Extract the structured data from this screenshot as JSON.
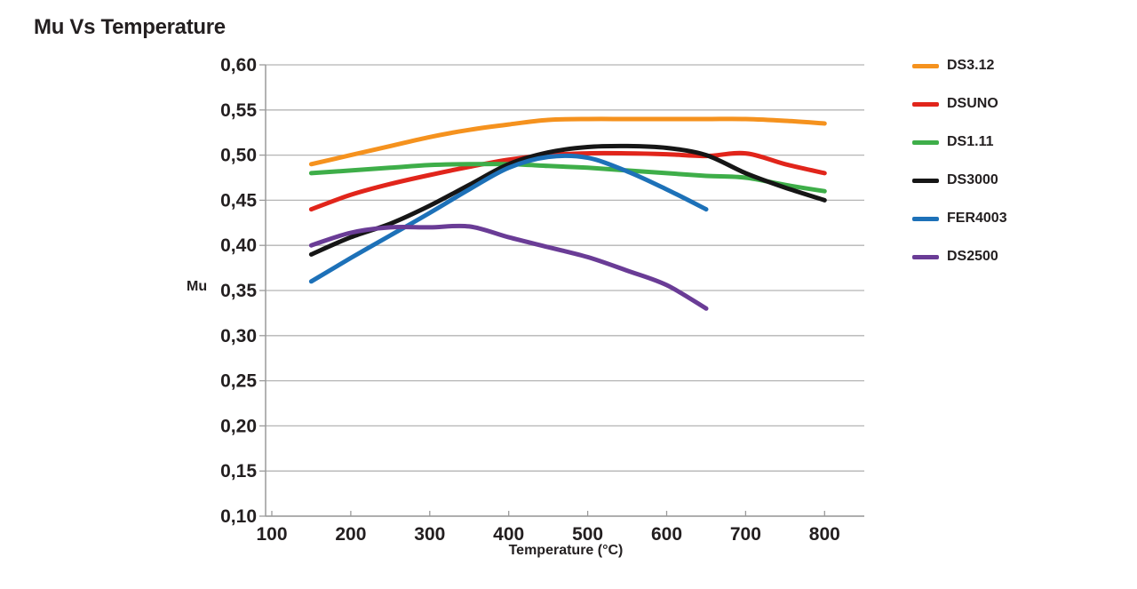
{
  "title": "Mu Vs Temperature",
  "colors": {
    "text": "#231F20",
    "grid": "#B5B5B5",
    "axis": "#9A9A9A",
    "background": "#FFFFFF"
  },
  "chart_data": {
    "type": "line",
    "title": "Mu Vs Temperature",
    "xlabel": "Temperature (°C)",
    "ylabel": "Mu",
    "xlim": [
      100,
      850
    ],
    "ylim": [
      0.1,
      0.6
    ],
    "grid": "horizontal",
    "legend_position": "right",
    "x_ticks": [
      {
        "value": 100,
        "label": "100"
      },
      {
        "value": 200,
        "label": "200"
      },
      {
        "value": 300,
        "label": "300"
      },
      {
        "value": 400,
        "label": "400"
      },
      {
        "value": 500,
        "label": "500"
      },
      {
        "value": 600,
        "label": "600"
      },
      {
        "value": 700,
        "label": "700"
      },
      {
        "value": 800,
        "label": "800"
      }
    ],
    "y_ticks": [
      {
        "value": 0.6,
        "label": "0,60"
      },
      {
        "value": 0.55,
        "label": "0,55"
      },
      {
        "value": 0.5,
        "label": "0,50"
      },
      {
        "value": 0.45,
        "label": "0,45"
      },
      {
        "value": 0.4,
        "label": "0,40"
      },
      {
        "value": 0.35,
        "label": "0,35"
      },
      {
        "value": 0.3,
        "label": "0,30"
      },
      {
        "value": 0.25,
        "label": "0,25"
      },
      {
        "value": 0.2,
        "label": "0,20"
      },
      {
        "value": 0.15,
        "label": "0,15"
      },
      {
        "value": 0.1,
        "label": "0,10"
      }
    ],
    "series": [
      {
        "name": "DS3.12",
        "color": "#F5921E",
        "x": [
          150,
          200,
          250,
          300,
          350,
          400,
          450,
          500,
          550,
          600,
          650,
          700,
          750,
          800
        ],
        "y": [
          0.49,
          0.5,
          0.51,
          0.52,
          0.528,
          0.534,
          0.539,
          0.54,
          0.54,
          0.54,
          0.54,
          0.54,
          0.538,
          0.535
        ]
      },
      {
        "name": "DSUNO",
        "color": "#E1251B",
        "x": [
          150,
          200,
          250,
          300,
          350,
          400,
          450,
          500,
          550,
          600,
          650,
          700,
          750,
          800
        ],
        "y": [
          0.44,
          0.456,
          0.468,
          0.478,
          0.487,
          0.495,
          0.5,
          0.502,
          0.502,
          0.501,
          0.499,
          0.502,
          0.49,
          0.48
        ]
      },
      {
        "name": "DS1.11",
        "color": "#3EAE49",
        "x": [
          150,
          200,
          250,
          300,
          350,
          400,
          450,
          500,
          550,
          600,
          650,
          700,
          750,
          800
        ],
        "y": [
          0.48,
          0.483,
          0.486,
          0.489,
          0.49,
          0.49,
          0.488,
          0.486,
          0.483,
          0.48,
          0.477,
          0.475,
          0.467,
          0.46
        ]
      },
      {
        "name": "DS3000",
        "color": "#161616",
        "x": [
          150,
          200,
          250,
          300,
          350,
          400,
          450,
          500,
          550,
          600,
          650,
          700,
          750,
          800
        ],
        "y": [
          0.39,
          0.409,
          0.424,
          0.444,
          0.467,
          0.49,
          0.503,
          0.509,
          0.51,
          0.508,
          0.5,
          0.48,
          0.464,
          0.45
        ]
      },
      {
        "name": "FER4003",
        "color": "#1D71B8",
        "x": [
          150,
          200,
          250,
          300,
          350,
          400,
          450,
          500,
          550,
          600,
          650
        ],
        "y": [
          0.36,
          0.386,
          0.411,
          0.436,
          0.462,
          0.486,
          0.498,
          0.497,
          0.482,
          0.462,
          0.44
        ]
      },
      {
        "name": "DS2500",
        "color": "#6A3C96",
        "x": [
          150,
          200,
          250,
          300,
          350,
          400,
          450,
          500,
          550,
          600,
          650
        ],
        "y": [
          0.4,
          0.414,
          0.42,
          0.42,
          0.421,
          0.409,
          0.398,
          0.387,
          0.372,
          0.356,
          0.33
        ]
      }
    ]
  }
}
